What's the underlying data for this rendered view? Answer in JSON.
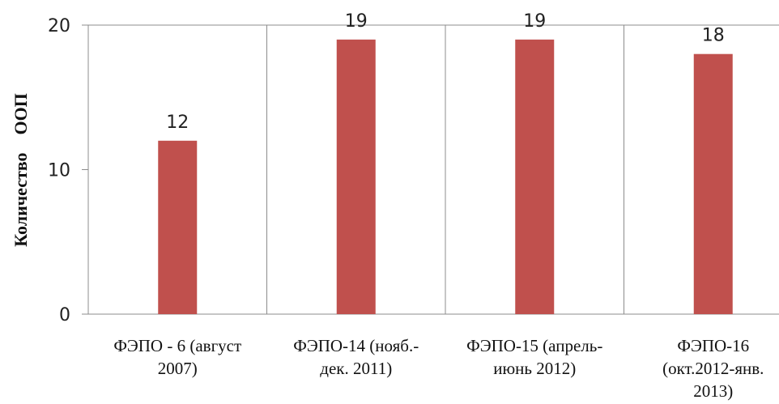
{
  "chart_data": {
    "type": "bar",
    "categories": [
      [
        "ФЭПО - 6 (август",
        "2007)"
      ],
      [
        "ФЭПО-14 (нояб.-",
        "дек. 2011)"
      ],
      [
        "ФЭПО-15 (апрель-",
        "июнь 2012)"
      ],
      [
        "ФЭПО-16",
        "(окт.2012-янв.",
        "2013)"
      ]
    ],
    "values": [
      12,
      19,
      19,
      18
    ],
    "ylabel": "Количество    ООП",
    "ylim": [
      0,
      20
    ],
    "yticks": [
      0,
      10,
      20
    ],
    "grid": true,
    "bar_color": "#c0504d",
    "data_labels": true
  }
}
